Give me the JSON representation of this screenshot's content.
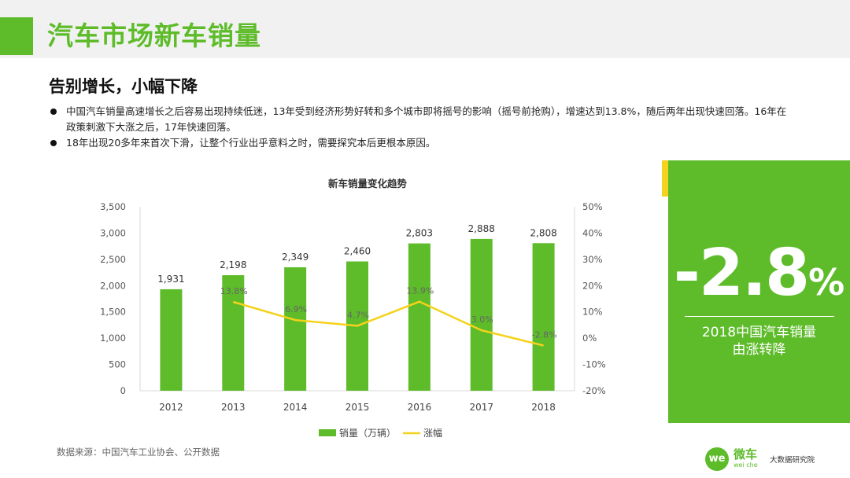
{
  "header": {
    "title": "汽车市场新车销量"
  },
  "subtitle": "告别增长，小幅下降",
  "bullets": [
    "中国汽车销量高速增长之后容易出现持续低迷，13年受到经济形势好转和多个城市即将摇号的影响（摇号前抢购），增速达到13.8%，随后两年出现快速回落。16年在政策刺激下大涨之后，17年快速回落。",
    "18年出现20多年来首次下滑，让整个行业出乎意料之时，需要探究本后更根本原因。"
  ],
  "chart_data": {
    "type": "bar",
    "title": "新车销量变化趋势",
    "categories": [
      "2012",
      "2013",
      "2014",
      "2015",
      "2016",
      "2017",
      "2018"
    ],
    "series": [
      {
        "name": "销量（万辆）",
        "type": "bar",
        "axis": "left",
        "color": "#5ebc2a",
        "values": [
          1931,
          2198,
          2349,
          2460,
          2803,
          2888,
          2808
        ],
        "labels": [
          "1,931",
          "2,198",
          "2,349",
          "2,460",
          "2,803",
          "2,888",
          "2,808"
        ]
      },
      {
        "name": "涨幅",
        "type": "line",
        "axis": "right",
        "color": "#f5d21b",
        "values": [
          null,
          13.8,
          6.9,
          4.7,
          13.9,
          3.0,
          -2.8
        ],
        "labels": [
          "",
          "13.8%",
          "6.9%",
          "4.7%",
          "13.9%",
          "3.0%",
          "-2.8%"
        ]
      }
    ],
    "y_left": {
      "min": 0,
      "max": 3500,
      "ticks": [
        "0",
        "500",
        "1,000",
        "1,500",
        "2,000",
        "2,500",
        "3,000",
        "3,500"
      ]
    },
    "y_right": {
      "min": -20,
      "max": 50,
      "ticks": [
        "-20%",
        "-10%",
        "0%",
        "10%",
        "20%",
        "30%",
        "40%",
        "50%"
      ]
    },
    "grid": false,
    "legend_position": "bottom"
  },
  "highlight": {
    "value": "-2.8",
    "unit": "%",
    "desc_line1": "2018中国汽车销量",
    "desc_line2": "由涨转降"
  },
  "source": "数据来源：中国汽车工业协会、公开数据",
  "logo": {
    "mark": "we",
    "name": "微车",
    "sub": "wei che",
    "tagline": "大数据研究院"
  }
}
